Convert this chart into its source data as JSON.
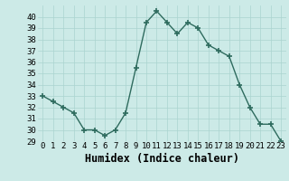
{
  "x": [
    0,
    1,
    2,
    3,
    4,
    5,
    6,
    7,
    8,
    9,
    10,
    11,
    12,
    13,
    14,
    15,
    16,
    17,
    18,
    19,
    20,
    21,
    22,
    23
  ],
  "y": [
    33,
    32.5,
    32,
    31.5,
    30,
    30,
    29.5,
    30,
    31.5,
    35.5,
    39.5,
    40.5,
    39.5,
    38.5,
    39.5,
    39,
    37.5,
    37,
    36.5,
    34,
    32,
    30.5,
    30.5,
    29
  ],
  "line_color": "#2e6b5e",
  "marker": "+",
  "marker_size": 4,
  "marker_lw": 1.2,
  "line_width": 1.0,
  "bg_color": "#cceae7",
  "grid_color": "#aad4d0",
  "xlabel": "Humidex (Indice chaleur)",
  "xlim": [
    -0.5,
    23.5
  ],
  "ylim": [
    29,
    41
  ],
  "yticks": [
    29,
    30,
    31,
    32,
    33,
    34,
    35,
    36,
    37,
    38,
    39,
    40
  ],
  "xticks": [
    0,
    1,
    2,
    3,
    4,
    5,
    6,
    7,
    8,
    9,
    10,
    11,
    12,
    13,
    14,
    15,
    16,
    17,
    18,
    19,
    20,
    21,
    22,
    23
  ],
  "xtick_labels": [
    "0",
    "1",
    "2",
    "3",
    "4",
    "5",
    "6",
    "7",
    "8",
    "9",
    "10",
    "11",
    "12",
    "13",
    "14",
    "15",
    "16",
    "17",
    "18",
    "19",
    "20",
    "21",
    "22",
    "23"
  ],
  "tick_fontsize": 6.5,
  "xlabel_fontsize": 8.5
}
